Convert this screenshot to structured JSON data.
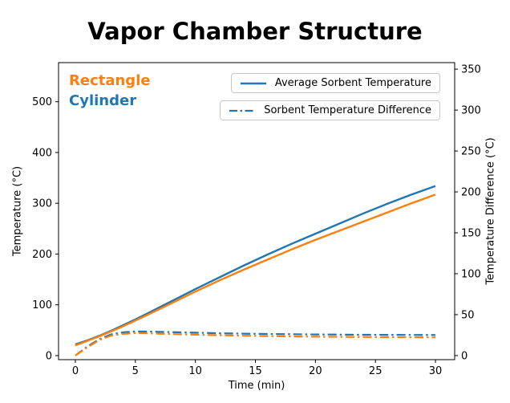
{
  "title": "Vapor Chamber Structure",
  "plot": {
    "series_labels": [
      {
        "text": "Rectangle",
        "color": "#ff7f0e"
      },
      {
        "text": "Cylinder",
        "color": "#1f77b4"
      }
    ],
    "legends": [
      {
        "label": "Average Sorbent Temperature",
        "line_style": "solid",
        "line_color": "#1f77b4"
      },
      {
        "label": "Sorbent Temperature Difference",
        "line_style": "dashdot",
        "line_color": "#1f77b4"
      }
    ]
  },
  "colors": {
    "blue": "#1f77b4",
    "orange": "#ff7f0e"
  },
  "chart_data": {
    "type": "line",
    "title": "Vapor Chamber Structure",
    "xlabel": "Time (min)",
    "ylabel": "Temperature (°C)",
    "ylabel2": "Temperature Difference (°C)",
    "grid": false,
    "legend_position": "upper right",
    "xticks": [
      0,
      5,
      10,
      15,
      20,
      25,
      30
    ],
    "yticks_left": [
      0,
      100,
      200,
      300,
      400,
      500
    ],
    "yticks_right": [
      0,
      50,
      100,
      150,
      200,
      250,
      300,
      350
    ],
    "xlim": [
      -1.4,
      31.6
    ],
    "ylim_left": [
      -8,
      577
    ],
    "ylim_right": [
      -5,
      358
    ],
    "x": [
      0,
      1,
      2,
      3,
      4,
      5,
      6,
      8,
      10,
      12,
      14,
      16,
      18,
      20,
      22,
      24,
      26,
      28,
      30
    ],
    "series": [
      {
        "id": "cylinder-avg-temp",
        "name": "Cylinder - Average Sorbent Temperature",
        "axis": "left",
        "style": "solid",
        "color": "#1f77b4",
        "values": [
          22,
          30,
          39,
          49,
          60,
          71,
          83,
          107,
          131,
          154,
          177,
          199,
          220,
          240,
          260,
          280,
          299,
          317,
          334
        ]
      },
      {
        "id": "rectangle-avg-temp",
        "name": "Rectangle - Average Sorbent Temperature",
        "axis": "left",
        "style": "solid",
        "color": "#ff7f0e",
        "values": [
          20,
          29,
          38,
          48,
          58,
          69,
          80,
          103,
          126,
          148,
          169,
          189,
          209,
          228,
          246,
          264,
          282,
          300,
          317
        ]
      },
      {
        "id": "cylinder-temp-diff",
        "name": "Cylinder - Sorbent Temperature Difference",
        "axis": "right",
        "style": "dashdot",
        "color": "#1f77b4",
        "values": [
          0,
          11,
          20,
          26,
          28.5,
          29.5,
          29.3,
          28.7,
          28,
          27.3,
          26.8,
          26.4,
          26.1,
          25.8,
          25.6,
          25.4,
          25.3,
          25.2,
          25.1
        ]
      },
      {
        "id": "rectangle-temp-diff",
        "name": "Rectangle - Sorbent Temperature Difference",
        "axis": "right",
        "style": "dashdot",
        "color": "#ff7f0e",
        "values": [
          0,
          10,
          19,
          24.5,
          26.5,
          27.5,
          27.2,
          26.3,
          25.5,
          24.8,
          24.2,
          23.8,
          23.4,
          23.1,
          22.9,
          22.7,
          22.5,
          22.4,
          22.3
        ]
      }
    ]
  }
}
